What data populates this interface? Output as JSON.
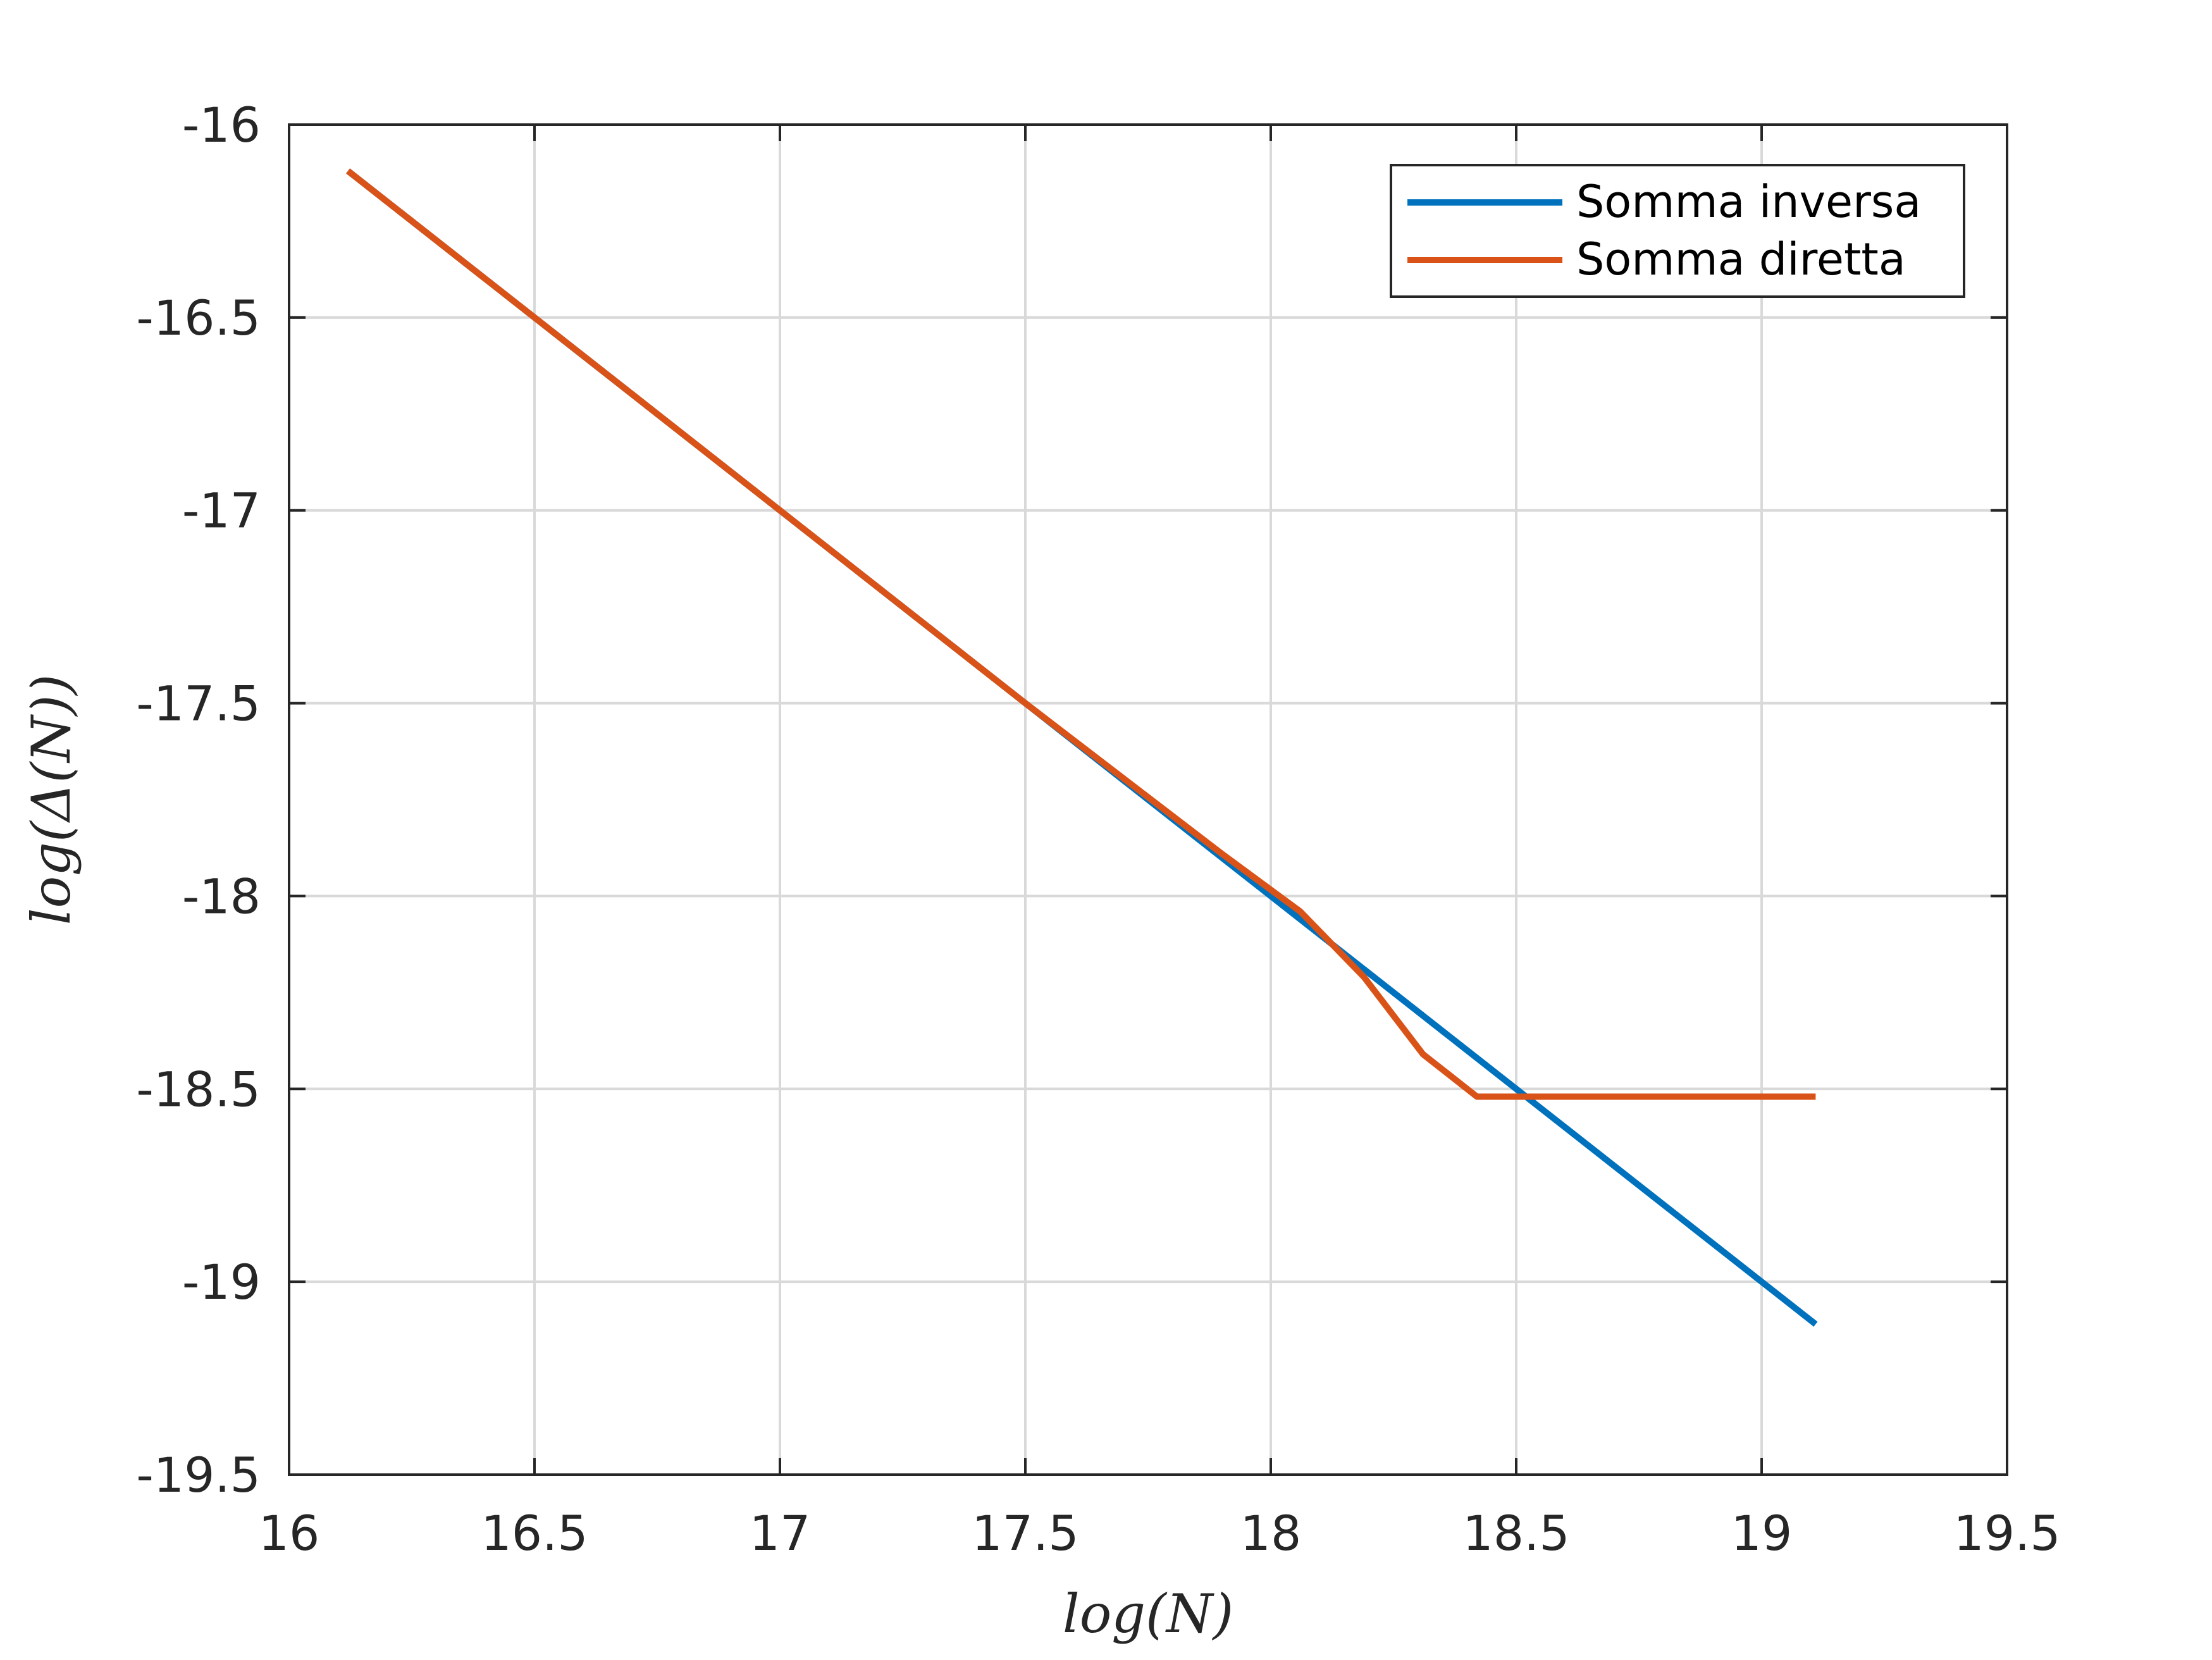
{
  "chart_data": {
    "type": "line",
    "xlabel": "log(N)",
    "ylabel": "log(Δ(N))",
    "xlim": [
      16,
      19.5
    ],
    "ylim": [
      -19.5,
      -16
    ],
    "xticks": [
      16,
      16.5,
      17,
      17.5,
      18,
      18.5,
      19,
      19.5
    ],
    "xtick_labels": [
      "16",
      "16.5",
      "17",
      "17.5",
      "18",
      "18.5",
      "19",
      "19.5"
    ],
    "yticks": [
      -16,
      -16.5,
      -17,
      -17.5,
      -18,
      -18.5,
      -19,
      -19.5
    ],
    "ytick_labels": [
      "-16",
      "-16.5",
      "-17",
      "-17.5",
      "-18",
      "-18.5",
      "-19",
      "-19.5"
    ],
    "grid": true,
    "legend_position": "top-right",
    "series": [
      {
        "name": "Somma inversa",
        "color": "#0072BD",
        "x": [
          16.12,
          19.11
        ],
        "y": [
          -16.12,
          -19.11
        ]
      },
      {
        "name": "Somma diretta",
        "color": "#D95319",
        "x": [
          16.12,
          17.0,
          17.5,
          17.9,
          18.06,
          18.19,
          18.31,
          18.42,
          18.52,
          19.11
        ],
        "y": [
          -16.12,
          -17.0,
          -17.5,
          -17.89,
          -18.04,
          -18.21,
          -18.41,
          -18.52,
          -18.52,
          -18.52
        ]
      }
    ]
  }
}
